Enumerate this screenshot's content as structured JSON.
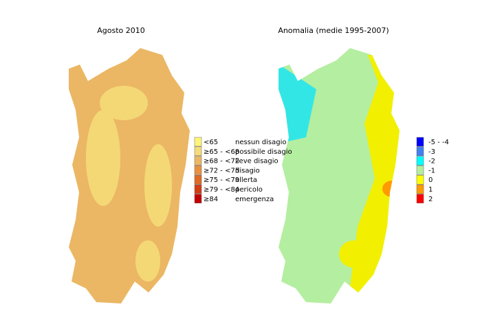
{
  "panels": [
    {
      "title": "Agosto 2010",
      "legend": [
        {
          "range": "<65",
          "label": "nessun disagio",
          "color": "#fff57a"
        },
        {
          "range": "≥65 - <68",
          "label": "possibile disagio",
          "color": "#f6dc78"
        },
        {
          "range": "≥68 - <72",
          "label": "lieve disagio",
          "color": "#ebb764"
        },
        {
          "range": "≥72 - <75",
          "label": "disagio",
          "color": "#e8913e"
        },
        {
          "range": "≥75 - <79",
          "label": "allerta",
          "color": "#e06a24"
        },
        {
          "range": "≥79 - <84",
          "label": "pericolo",
          "color": "#d43c12"
        },
        {
          "range": "≥84",
          "label": "emergenza",
          "color": "#c40000"
        }
      ]
    },
    {
      "title": "Anomalia (medie 1995-2007)",
      "legend": [
        {
          "range": "-5 - -4",
          "color": "#0000ff"
        },
        {
          "range": "-3",
          "color": "#4080f0"
        },
        {
          "range": "-2",
          "color": "#00ffff"
        },
        {
          "range": "-1",
          "color": "#b4eea0"
        },
        {
          "range": "0",
          "color": "#ffff00"
        },
        {
          "range": "1",
          "color": "#ff9a00"
        },
        {
          "range": "2",
          "color": "#ff0000"
        }
      ]
    }
  ]
}
